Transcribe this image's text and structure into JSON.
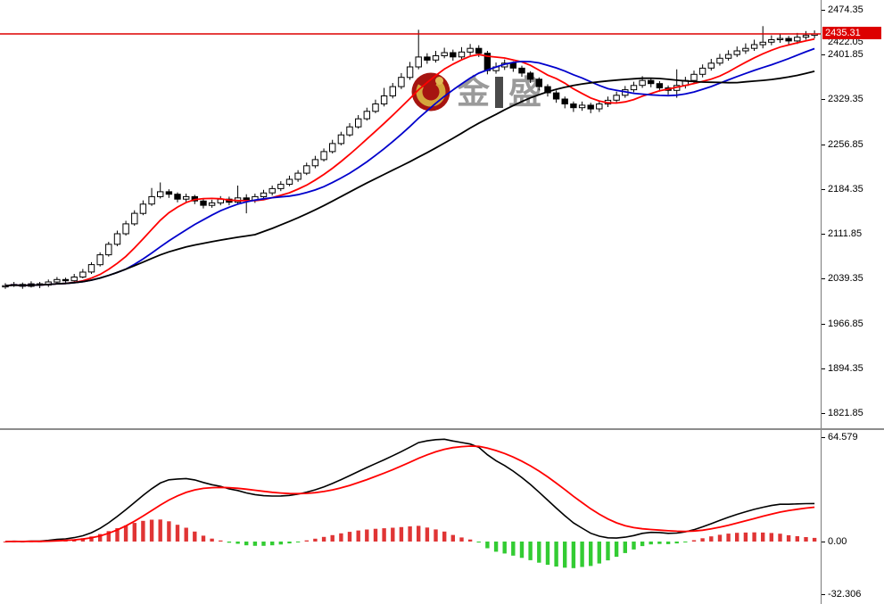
{
  "watermark": {
    "text_left": "金",
    "text_right": "盛",
    "logo": "golden-crescent-logo"
  },
  "price_axis": {
    "labels": [
      "2474.35",
      "2401.85",
      "2329.35",
      "2256.85",
      "2184.35",
      "2111.85",
      "2039.35",
      "1966.85",
      "1894.35",
      "1821.85"
    ],
    "current_price_badge": "2435.31",
    "partial_label": "2422.05",
    "badge_color": "#dd0000"
  },
  "indicator_axis": {
    "labels": [
      "64.579",
      "0.00",
      "-32.306"
    ]
  },
  "chart_data": [
    {
      "type": "candlestick",
      "bid_line": 2435.31,
      "y_axis": {
        "min": 1821.85,
        "max": 2474.35,
        "tick_step": 72.5
      },
      "colors": {
        "up_fill": "#ffffff",
        "down_fill": "#000000",
        "outline": "#000000",
        "bid_line": "#dd0000"
      },
      "overlays": [
        {
          "name": "ma-fast-line",
          "type": "sma",
          "period": 8,
          "color": "#ff0000"
        },
        {
          "name": "ma-mid-line",
          "type": "sma",
          "period": 15,
          "color": "#0000cc"
        },
        {
          "name": "ma-slow-line",
          "type": "sma",
          "period": 30,
          "color": "#000000"
        }
      ],
      "candles_ohlc": [
        [
          2026,
          2032,
          2023,
          2028
        ],
        [
          2028,
          2034,
          2026,
          2030
        ],
        [
          2030,
          2033,
          2023,
          2027
        ],
        [
          2027,
          2035,
          2025,
          2031
        ],
        [
          2031,
          2034,
          2024,
          2029
        ],
        [
          2029,
          2038,
          2026,
          2034
        ],
        [
          2034,
          2042,
          2031,
          2038
        ],
        [
          2038,
          2041,
          2032,
          2036
        ],
        [
          2036,
          2047,
          2033,
          2042
        ],
        [
          2042,
          2055,
          2040,
          2050
        ],
        [
          2050,
          2066,
          2047,
          2062
        ],
        [
          2062,
          2082,
          2059,
          2078
        ],
        [
          2078,
          2099,
          2075,
          2095
        ],
        [
          2095,
          2117,
          2092,
          2112
        ],
        [
          2112,
          2133,
          2109,
          2128
        ],
        [
          2128,
          2150,
          2125,
          2145
        ],
        [
          2145,
          2166,
          2142,
          2160
        ],
        [
          2160,
          2186,
          2157,
          2172
        ],
        [
          2172,
          2195,
          2169,
          2180
        ],
        [
          2180,
          2184,
          2170,
          2176
        ],
        [
          2176,
          2179,
          2163,
          2168
        ],
        [
          2168,
          2177,
          2164,
          2172
        ],
        [
          2172,
          2175,
          2160,
          2165
        ],
        [
          2165,
          2169,
          2153,
          2158
        ],
        [
          2158,
          2167,
          2154,
          2162
        ],
        [
          2162,
          2173,
          2158,
          2168
        ],
        [
          2168,
          2172,
          2158,
          2163
        ],
        [
          2163,
          2190,
          2159,
          2170
        ],
        [
          2170,
          2176,
          2145,
          2166
        ],
        [
          2166,
          2177,
          2162,
          2172
        ],
        [
          2172,
          2183,
          2168,
          2178
        ],
        [
          2178,
          2190,
          2174,
          2185
        ],
        [
          2185,
          2197,
          2181,
          2192
        ],
        [
          2192,
          2206,
          2189,
          2200
        ],
        [
          2200,
          2215,
          2196,
          2210
        ],
        [
          2210,
          2227,
          2207,
          2222
        ],
        [
          2222,
          2238,
          2218,
          2232
        ],
        [
          2232,
          2250,
          2229,
          2245
        ],
        [
          2245,
          2264,
          2242,
          2258
        ],
        [
          2258,
          2277,
          2255,
          2272
        ],
        [
          2272,
          2291,
          2269,
          2285
        ],
        [
          2285,
          2304,
          2282,
          2298
        ],
        [
          2298,
          2316,
          2295,
          2310
        ],
        [
          2310,
          2329,
          2307,
          2322
        ],
        [
          2322,
          2348,
          2318,
          2335
        ],
        [
          2335,
          2356,
          2331,
          2350
        ],
        [
          2350,
          2372,
          2346,
          2365
        ],
        [
          2365,
          2390,
          2361,
          2382
        ],
        [
          2382,
          2442,
          2378,
          2398
        ],
        [
          2398,
          2404,
          2387,
          2393
        ],
        [
          2393,
          2408,
          2389,
          2400
        ],
        [
          2400,
          2413,
          2396,
          2405
        ],
        [
          2405,
          2410,
          2392,
          2398
        ],
        [
          2398,
          2414,
          2394,
          2406
        ],
        [
          2406,
          2419,
          2401,
          2412
        ],
        [
          2412,
          2417,
          2398,
          2404
        ],
        [
          2404,
          2408,
          2370,
          2376
        ],
        [
          2376,
          2389,
          2371,
          2382
        ],
        [
          2382,
          2394,
          2377,
          2388
        ],
        [
          2388,
          2391,
          2374,
          2380
        ],
        [
          2380,
          2384,
          2366,
          2372
        ],
        [
          2372,
          2375,
          2356,
          2362
        ],
        [
          2362,
          2365,
          2344,
          2350
        ],
        [
          2350,
          2354,
          2334,
          2340
        ],
        [
          2340,
          2344,
          2324,
          2330
        ],
        [
          2330,
          2334,
          2315,
          2322
        ],
        [
          2322,
          2326,
          2309,
          2316
        ],
        [
          2316,
          2326,
          2311,
          2320
        ],
        [
          2320,
          2324,
          2307,
          2314
        ],
        [
          2314,
          2327,
          2309,
          2322
        ],
        [
          2322,
          2334,
          2317,
          2328
        ],
        [
          2328,
          2342,
          2324,
          2336
        ],
        [
          2336,
          2351,
          2332,
          2345
        ],
        [
          2345,
          2358,
          2341,
          2352
        ],
        [
          2352,
          2367,
          2348,
          2360
        ],
        [
          2360,
          2364,
          2349,
          2355
        ],
        [
          2355,
          2359,
          2342,
          2348
        ],
        [
          2348,
          2352,
          2337,
          2344
        ],
        [
          2344,
          2378,
          2332,
          2352
        ],
        [
          2352,
          2366,
          2347,
          2360
        ],
        [
          2360,
          2376,
          2355,
          2370
        ],
        [
          2370,
          2386,
          2365,
          2380
        ],
        [
          2380,
          2395,
          2376,
          2388
        ],
        [
          2388,
          2403,
          2384,
          2396
        ],
        [
          2396,
          2409,
          2392,
          2402
        ],
        [
          2402,
          2415,
          2398,
          2408
        ],
        [
          2408,
          2420,
          2403,
          2412
        ],
        [
          2412,
          2426,
          2408,
          2418
        ],
        [
          2418,
          2448,
          2412,
          2422
        ],
        [
          2422,
          2433,
          2417,
          2426
        ],
        [
          2426,
          2436,
          2421,
          2428
        ],
        [
          2428,
          2432,
          2418,
          2424
        ],
        [
          2424,
          2437,
          2419,
          2430
        ],
        [
          2430,
          2440,
          2426,
          2433
        ],
        [
          2433,
          2441,
          2428,
          2435.31
        ]
      ]
    },
    {
      "type": "macd",
      "params": {
        "fast": 12,
        "slow": 26,
        "signal": 9
      },
      "y_axis": {
        "min": -32.306,
        "max": 64.579,
        "zero": 0
      },
      "colors": {
        "macd_line": "#000000",
        "signal_line": "#ff0000",
        "hist_pos": "#e03535",
        "hist_neg": "#33cc33"
      }
    }
  ]
}
